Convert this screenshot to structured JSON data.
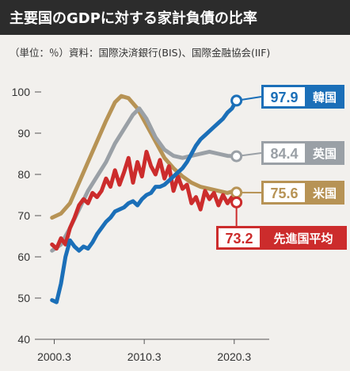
{
  "header": {
    "title": "主要国のGDPに対する家計負債の比率"
  },
  "source": {
    "text": "（単位：％）資料：国際決済銀行(BIS)、国際金融協会(IIF)"
  },
  "colors": {
    "korea": "#1b6fb8",
    "uk": "#9aa0a6",
    "us": "#b79355",
    "advanced": "#cc2c2c",
    "background": "#f2f0ed",
    "header": "#2c2c2c"
  },
  "chart_data": {
    "type": "line",
    "ylim": [
      40,
      100
    ],
    "yticks": [
      100,
      90,
      80,
      70,
      60,
      50,
      40
    ],
    "xlim": [
      1999.5,
      2021.5
    ],
    "xticks": [
      {
        "value": 2000.25,
        "label": "2000.3"
      },
      {
        "value": 2010.25,
        "label": "2010.3"
      },
      {
        "value": 2020.25,
        "label": "2020.3"
      }
    ],
    "grid": false,
    "series": [
      {
        "key": "us",
        "name": "米国",
        "end_value": 75.6,
        "end_label": "75.6",
        "points": [
          [
            2000.0,
            69.5
          ],
          [
            2001.0,
            70.5
          ],
          [
            2002.0,
            73.0
          ],
          [
            2003.0,
            78.0
          ],
          [
            2004.0,
            83.0
          ],
          [
            2005.0,
            88.0
          ],
          [
            2006.0,
            93.0
          ],
          [
            2007.0,
            97.5
          ],
          [
            2007.7,
            99.0
          ],
          [
            2008.5,
            98.5
          ],
          [
            2009.5,
            96.0
          ],
          [
            2010.5,
            92.0
          ],
          [
            2011.5,
            88.0
          ],
          [
            2012.5,
            84.0
          ],
          [
            2013.5,
            81.5
          ],
          [
            2014.5,
            79.5
          ],
          [
            2015.5,
            78.0
          ],
          [
            2016.5,
            77.0
          ],
          [
            2017.5,
            76.5
          ],
          [
            2018.5,
            76.0
          ],
          [
            2019.5,
            75.5
          ],
          [
            2020.25,
            76.0
          ],
          [
            2020.5,
            75.6
          ]
        ]
      },
      {
        "key": "uk",
        "name": "英国",
        "end_value": 84.4,
        "end_label": "84.4",
        "points": [
          [
            2000.0,
            61.5
          ],
          [
            2001.0,
            63.0
          ],
          [
            2002.0,
            67.0
          ],
          [
            2003.0,
            71.5
          ],
          [
            2004.0,
            76.0
          ],
          [
            2005.0,
            79.5
          ],
          [
            2006.0,
            83.0
          ],
          [
            2007.0,
            87.5
          ],
          [
            2008.0,
            91.0
          ],
          [
            2009.0,
            94.5
          ],
          [
            2009.7,
            96.0
          ],
          [
            2010.5,
            93.5
          ],
          [
            2011.5,
            89.0
          ],
          [
            2012.5,
            86.0
          ],
          [
            2013.5,
            84.5
          ],
          [
            2014.5,
            84.0
          ],
          [
            2015.5,
            84.5
          ],
          [
            2016.5,
            85.0
          ],
          [
            2017.5,
            85.5
          ],
          [
            2018.5,
            85.0
          ],
          [
            2019.5,
            84.5
          ],
          [
            2020.5,
            84.4
          ]
        ]
      },
      {
        "key": "advanced",
        "name": "先進国平均",
        "end_value": 73.2,
        "end_label": "73.2",
        "points": [
          [
            2000.0,
            63.0
          ],
          [
            2000.5,
            62.0
          ],
          [
            2001.0,
            64.5
          ],
          [
            2001.5,
            63.0
          ],
          [
            2002.0,
            67.0
          ],
          [
            2002.5,
            69.5
          ],
          [
            2003.0,
            72.5
          ],
          [
            2003.5,
            74.0
          ],
          [
            2004.0,
            73.0
          ],
          [
            2004.5,
            75.5
          ],
          [
            2005.0,
            74.5
          ],
          [
            2005.5,
            76.0
          ],
          [
            2006.0,
            79.0
          ],
          [
            2006.5,
            77.0
          ],
          [
            2007.0,
            81.0
          ],
          [
            2007.5,
            77.5
          ],
          [
            2008.0,
            80.5
          ],
          [
            2008.5,
            84.0
          ],
          [
            2009.0,
            78.0
          ],
          [
            2009.5,
            83.0
          ],
          [
            2010.0,
            79.5
          ],
          [
            2010.5,
            85.5
          ],
          [
            2011.0,
            82.0
          ],
          [
            2011.5,
            80.0
          ],
          [
            2012.0,
            83.5
          ],
          [
            2012.5,
            79.0
          ],
          [
            2013.0,
            82.0
          ],
          [
            2013.5,
            76.0
          ],
          [
            2014.0,
            79.5
          ],
          [
            2014.5,
            76.5
          ],
          [
            2015.0,
            77.5
          ],
          [
            2015.5,
            73.0
          ],
          [
            2016.0,
            74.5
          ],
          [
            2016.5,
            71.5
          ],
          [
            2017.0,
            76.0
          ],
          [
            2017.5,
            74.0
          ],
          [
            2018.0,
            75.5
          ],
          [
            2018.5,
            72.5
          ],
          [
            2019.0,
            75.0
          ],
          [
            2019.5,
            73.0
          ],
          [
            2020.0,
            74.5
          ],
          [
            2020.5,
            73.2
          ]
        ]
      },
      {
        "key": "korea",
        "name": "韓国",
        "end_value": 97.9,
        "end_label": "97.9",
        "points": [
          [
            2000.0,
            49.5
          ],
          [
            2000.5,
            49.0
          ],
          [
            2001.0,
            53.5
          ],
          [
            2001.5,
            60.0
          ],
          [
            2002.0,
            64.0
          ],
          [
            2002.5,
            62.5
          ],
          [
            2003.0,
            61.5
          ],
          [
            2003.5,
            62.5
          ],
          [
            2004.0,
            62.0
          ],
          [
            2004.5,
            63.5
          ],
          [
            2005.0,
            65.5
          ],
          [
            2005.5,
            67.0
          ],
          [
            2006.0,
            68.5
          ],
          [
            2006.5,
            69.5
          ],
          [
            2007.0,
            71.0
          ],
          [
            2007.5,
            71.5
          ],
          [
            2008.0,
            72.0
          ],
          [
            2008.5,
            73.0
          ],
          [
            2009.0,
            73.5
          ],
          [
            2009.5,
            72.5
          ],
          [
            2010.0,
            74.0
          ],
          [
            2010.5,
            75.0
          ],
          [
            2011.0,
            75.5
          ],
          [
            2011.5,
            77.0
          ],
          [
            2012.0,
            77.0
          ],
          [
            2012.5,
            77.5
          ],
          [
            2013.0,
            78.5
          ],
          [
            2013.5,
            79.5
          ],
          [
            2014.0,
            80.5
          ],
          [
            2014.5,
            81.5
          ],
          [
            2015.0,
            83.0
          ],
          [
            2015.5,
            85.0
          ],
          [
            2016.0,
            87.0
          ],
          [
            2016.5,
            88.5
          ],
          [
            2017.0,
            89.5
          ],
          [
            2017.5,
            90.5
          ],
          [
            2018.0,
            91.5
          ],
          [
            2018.5,
            92.5
          ],
          [
            2019.0,
            93.5
          ],
          [
            2019.5,
            95.0
          ],
          [
            2020.0,
            96.0
          ],
          [
            2020.5,
            97.9
          ]
        ]
      }
    ]
  }
}
